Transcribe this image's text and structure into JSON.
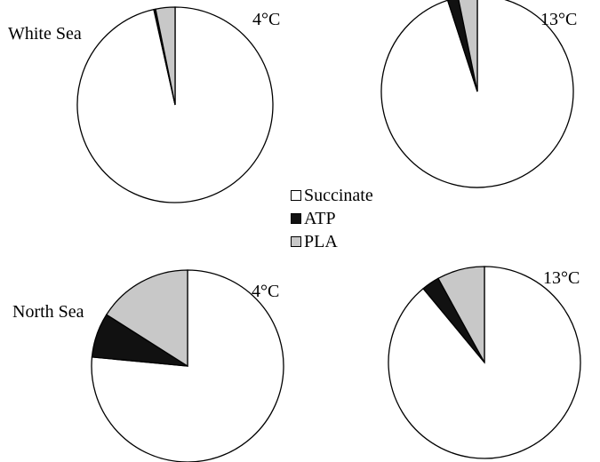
{
  "chart_data": [
    {
      "type": "pie",
      "site": "White Sea",
      "temperature": "4°C",
      "slices": [
        {
          "label": "Succinate",
          "value": 96.5
        },
        {
          "label": "ATP",
          "value": 0.3
        },
        {
          "label": "PLA",
          "value": 3.2
        }
      ]
    },
    {
      "type": "pie",
      "site": "",
      "temperature": "13°C",
      "slices": [
        {
          "label": "Succinate",
          "value": 95.0
        },
        {
          "label": "ATP",
          "value": 1.8
        },
        {
          "label": "PLA",
          "value": 3.2
        }
      ]
    },
    {
      "type": "pie",
      "site": "North Sea",
      "temperature": "4°C",
      "slices": [
        {
          "label": "Succinate",
          "value": 76.5
        },
        {
          "label": "ATP",
          "value": 7.5
        },
        {
          "label": "PLA",
          "value": 16.0
        }
      ]
    },
    {
      "type": "pie",
      "site": "",
      "temperature": "13°C",
      "slices": [
        {
          "label": "Succinate",
          "value": 89.0
        },
        {
          "label": "ATP",
          "value": 3.0
        },
        {
          "label": "PLA",
          "value": 8.0
        }
      ]
    }
  ],
  "legend": [
    {
      "label": "Succinate",
      "color": "#ffffff"
    },
    {
      "label": "ATP",
      "color": "#111111"
    },
    {
      "label": "PLA",
      "color": "#c8c8c8"
    }
  ],
  "colors": {
    "Succinate": "#ffffff",
    "ATP": "#111111",
    "PLA": "#c8c8c8",
    "stroke": "#000000"
  }
}
